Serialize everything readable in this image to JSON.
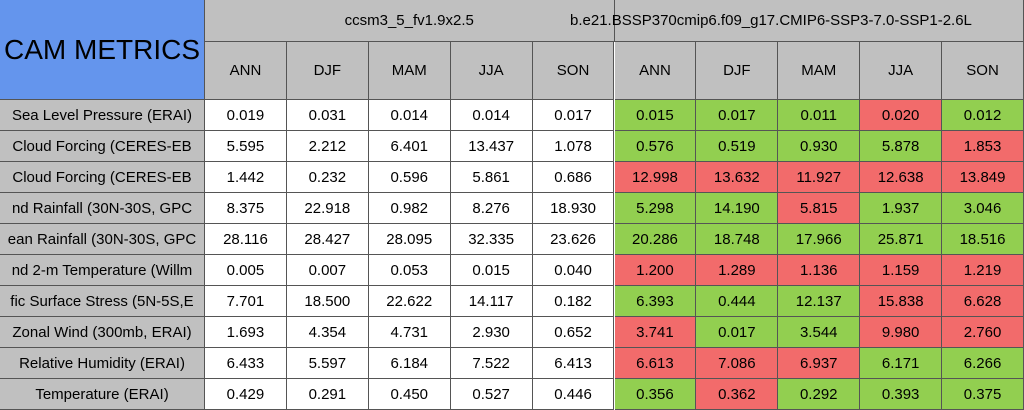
{
  "title": "CAM METRICS",
  "cases": [
    "ccsm3_5_fv1.9x2.5",
    "b.e21.BSSP370cmip6.f09_g17.CMIP6-SSP3-7.0-SSP1-2.6L"
  ],
  "seasons": [
    "ANN",
    "DJF",
    "MAM",
    "JJA",
    "SON"
  ],
  "colors": {
    "better": "#92cf50",
    "worse": "#f26b6b"
  },
  "rows": [
    {
      "label": "Sea Level Pressure (ERAI)",
      "case1": [
        "0.019",
        "0.031",
        "0.014",
        "0.014",
        "0.017"
      ],
      "case2": [
        "0.015",
        "0.017",
        "0.011",
        "0.020",
        "0.012"
      ],
      "case2_colors": [
        "better",
        "better",
        "better",
        "worse",
        "better"
      ]
    },
    {
      "label": "Cloud Forcing (CERES-EB",
      "case1": [
        "5.595",
        "2.212",
        "6.401",
        "13.437",
        "1.078"
      ],
      "case2": [
        "0.576",
        "0.519",
        "0.930",
        "5.878",
        "1.853"
      ],
      "case2_colors": [
        "better",
        "better",
        "better",
        "better",
        "worse"
      ]
    },
    {
      "label": "Cloud Forcing (CERES-EB",
      "case1": [
        "1.442",
        "0.232",
        "0.596",
        "5.861",
        "0.686"
      ],
      "case2": [
        "12.998",
        "13.632",
        "11.927",
        "12.638",
        "13.849"
      ],
      "case2_colors": [
        "worse",
        "worse",
        "worse",
        "worse",
        "worse"
      ]
    },
    {
      "label": "nd Rainfall (30N-30S, GPC",
      "case1": [
        "8.375",
        "22.918",
        "0.982",
        "8.276",
        "18.930"
      ],
      "case2": [
        "5.298",
        "14.190",
        "5.815",
        "1.937",
        "3.046"
      ],
      "case2_colors": [
        "better",
        "better",
        "worse",
        "better",
        "better"
      ]
    },
    {
      "label": "ean Rainfall (30N-30S, GPC",
      "case1": [
        "28.116",
        "28.427",
        "28.095",
        "32.335",
        "23.626"
      ],
      "case2": [
        "20.286",
        "18.748",
        "17.966",
        "25.871",
        "18.516"
      ],
      "case2_colors": [
        "better",
        "better",
        "better",
        "better",
        "better"
      ]
    },
    {
      "label": "nd 2-m Temperature (Willm",
      "case1": [
        "0.005",
        "0.007",
        "0.053",
        "0.015",
        "0.040"
      ],
      "case2": [
        "1.200",
        "1.289",
        "1.136",
        "1.159",
        "1.219"
      ],
      "case2_colors": [
        "worse",
        "worse",
        "worse",
        "worse",
        "worse"
      ]
    },
    {
      "label": "fic Surface Stress (5N-5S,E",
      "case1": [
        "7.701",
        "18.500",
        "22.622",
        "14.117",
        "0.182"
      ],
      "case2": [
        "6.393",
        "0.444",
        "12.137",
        "15.838",
        "6.628"
      ],
      "case2_colors": [
        "better",
        "better",
        "better",
        "worse",
        "worse"
      ]
    },
    {
      "label": "Zonal Wind (300mb, ERAI)",
      "case1": [
        "1.693",
        "4.354",
        "4.731",
        "2.930",
        "0.652"
      ],
      "case2": [
        "3.741",
        "0.017",
        "3.544",
        "9.980",
        "2.760"
      ],
      "case2_colors": [
        "worse",
        "better",
        "better",
        "worse",
        "worse"
      ]
    },
    {
      "label": "Relative Humidity (ERAI)",
      "case1": [
        "6.433",
        "5.597",
        "6.184",
        "7.522",
        "6.413"
      ],
      "case2": [
        "6.613",
        "7.086",
        "6.937",
        "6.171",
        "6.266"
      ],
      "case2_colors": [
        "worse",
        "worse",
        "worse",
        "better",
        "better"
      ]
    },
    {
      "label": "Temperature (ERAI)",
      "case1": [
        "0.429",
        "0.291",
        "0.450",
        "0.527",
        "0.446"
      ],
      "case2": [
        "0.356",
        "0.362",
        "0.292",
        "0.393",
        "0.375"
      ],
      "case2_colors": [
        "better",
        "worse",
        "better",
        "better",
        "better"
      ]
    }
  ]
}
